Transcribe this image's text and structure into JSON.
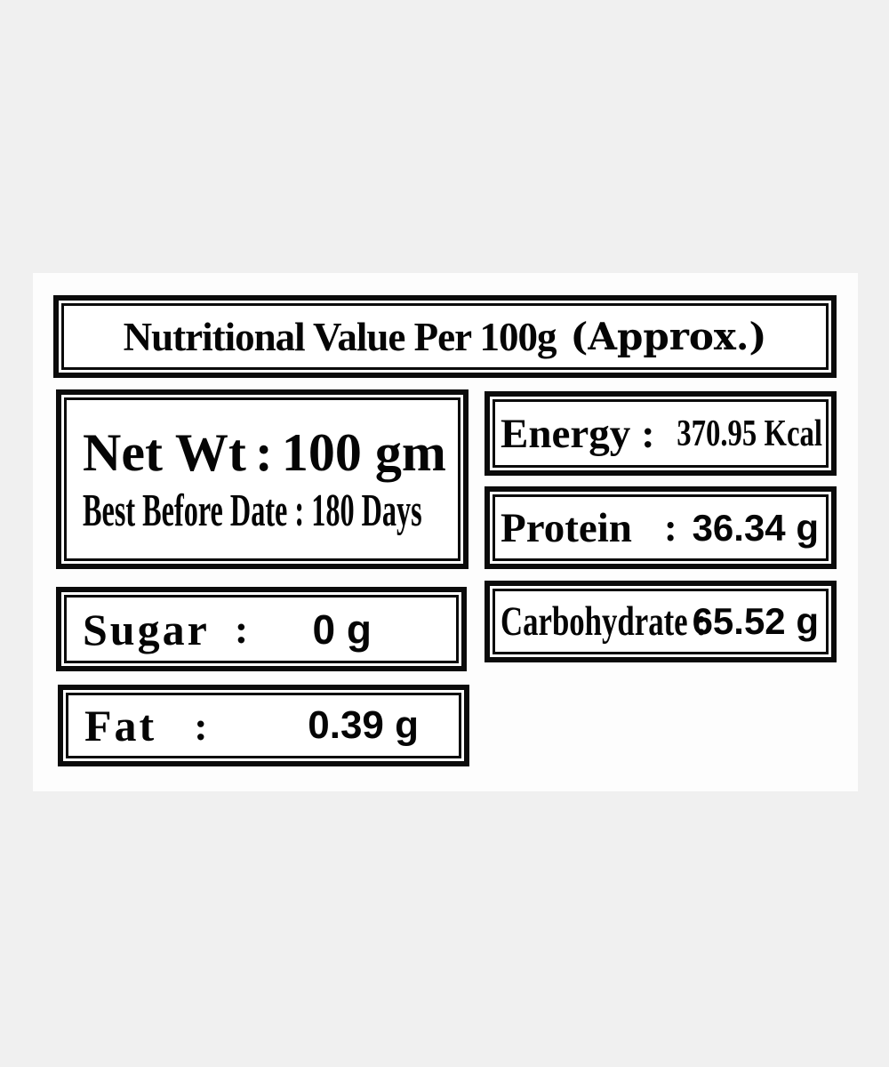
{
  "page": {
    "background_color": "#f0f0f0",
    "panel_color": "#fdfdfd",
    "border_color": "#0b0b0b",
    "text_color": "#050505"
  },
  "label": {
    "title_main": "Nutritional Value Per 100g",
    "title_suffix": "(Approx.)",
    "net_weight": {
      "label": "Net Wt",
      "colon": ":",
      "value": "100 gm"
    },
    "best_before": {
      "text": "Best Before Date : 180 Days"
    },
    "sugar": {
      "label": "Sugar",
      "colon": ":",
      "value": "0 g"
    },
    "fat": {
      "label": "Fat",
      "colon": ":",
      "value": "0.39 g"
    },
    "energy": {
      "label": "Energy",
      "colon": ":",
      "value": "370.95 Kcal"
    },
    "protein": {
      "label": "Protein",
      "colon": ":",
      "value": "36.34 g"
    },
    "carbohydrate": {
      "label": "Carbohydrate",
      "colon": ":",
      "value": "65.52 g"
    }
  }
}
